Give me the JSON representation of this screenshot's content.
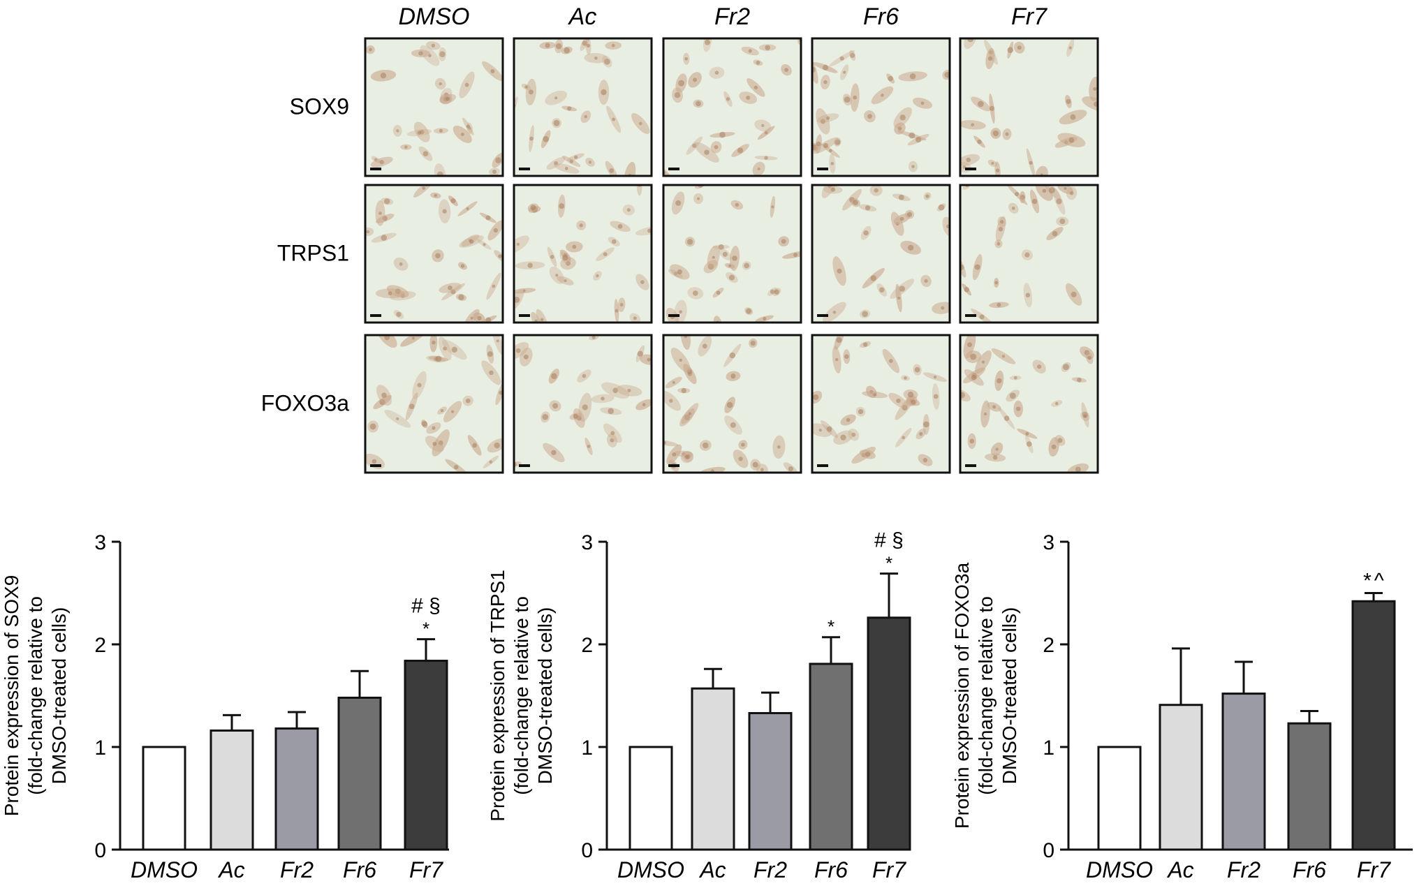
{
  "micrographs": {
    "columns": [
      "DMSO",
      "Ac",
      "Fr2",
      "Fr6",
      "Fr7"
    ],
    "rows": [
      "SOX9",
      "TRPS1",
      "FOXO3a"
    ]
  },
  "chart_data": [
    {
      "type": "bar",
      "ylabel": [
        "Protein expression of SOX9",
        "(fold-change relative to",
        "DMSO-treated cells)"
      ],
      "categories": [
        "DMSO",
        "Ac",
        "Fr2",
        "Fr6",
        "Fr7"
      ],
      "values": [
        1.0,
        1.16,
        1.18,
        1.48,
        1.84
      ],
      "errors": [
        0.0,
        0.15,
        0.16,
        0.26,
        0.21
      ],
      "ylim": [
        0,
        3
      ],
      "yticks": [
        "0",
        "1",
        "2",
        "3"
      ],
      "annotations": [
        {
          "category": "Fr7",
          "star": "*",
          "symbols": "# §"
        }
      ]
    },
    {
      "type": "bar",
      "ylabel": [
        "Protein expression of TRPS1",
        "(fold-change relative to",
        "DMSO-treated cells)"
      ],
      "categories": [
        "DMSO",
        "Ac",
        "Fr2",
        "Fr6",
        "Fr7"
      ],
      "values": [
        1.0,
        1.57,
        1.33,
        1.81,
        2.26
      ],
      "errors": [
        0.0,
        0.19,
        0.2,
        0.26,
        0.43
      ],
      "ylim": [
        0,
        3
      ],
      "yticks": [
        "0",
        "1",
        "2",
        "3"
      ],
      "annotations": [
        {
          "category": "Fr6",
          "star": "*",
          "symbols": ""
        },
        {
          "category": "Fr7",
          "star": "*",
          "symbols": "# §"
        }
      ]
    },
    {
      "type": "bar",
      "ylabel": [
        "Protein expression of FOXO3a",
        "(fold-change relative to",
        "DMSO-treated cells)"
      ],
      "categories": [
        "DMSO",
        "Ac",
        "Fr2",
        "Fr6",
        "Fr7"
      ],
      "values": [
        1.0,
        1.41,
        1.52,
        1.23,
        2.42
      ],
      "errors": [
        0.0,
        0.55,
        0.31,
        0.12,
        0.08
      ],
      "ylim": [
        0,
        3
      ],
      "yticks": [
        "0",
        "1",
        "2",
        "3"
      ],
      "annotations": [
        {
          "category": "Fr7",
          "star": "*",
          "symbols": "^"
        }
      ]
    }
  ],
  "colors": {
    "bars": [
      "#ffffff",
      "#dcdcdc",
      "#9b9ba6",
      "#707070",
      "#3c3c3c"
    ],
    "stain": "#c9a98e",
    "background": "#e9eee2"
  }
}
